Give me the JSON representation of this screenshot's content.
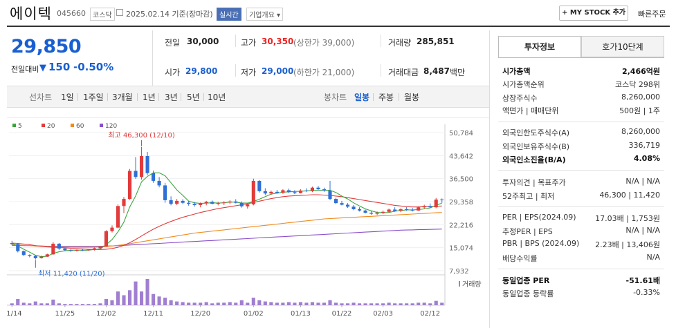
{
  "header": {
    "name": "에이텍",
    "code": "045660",
    "market": "코스닥",
    "date": "2025.02.14 기준(장마감)",
    "live": "실시간",
    "overview": "기업개요 ▾",
    "mystock": "+ MY STOCK 추가",
    "quick": "빠른주문"
  },
  "price": {
    "current": "29,850",
    "prev_label": "전일대비",
    "change": "150",
    "change_pct": "-0.50%"
  },
  "quote": {
    "prev_lbl": "전일",
    "prev_val": "30,000",
    "high_lbl": "고가",
    "high_val": "30,350",
    "high_sub": "(상한가 39,000)",
    "volume_lbl": "거래량",
    "volume_val": "285,851",
    "open_lbl": "시가",
    "open_val": "29,800",
    "low_lbl": "저가",
    "low_val": "29,000",
    "low_sub": "(하한가 21,000)",
    "amount_lbl": "거래대금",
    "amount_val": "8,487",
    "amount_unit": "백만"
  },
  "periods": {
    "line_label": "선차트",
    "line": [
      "1일",
      "1주일",
      "3개월",
      "1년",
      "3년",
      "5년",
      "10년"
    ],
    "candle_label": "봉차트",
    "candle": [
      "일봉",
      "주봉",
      "월봉"
    ],
    "selected": "일봉"
  },
  "chart_data": {
    "type": "candlestick",
    "legend": [
      "5",
      "20",
      "60",
      "120"
    ],
    "legend_colors": [
      "#3aa63a",
      "#e23b3b",
      "#f08a1c",
      "#8b4fc9"
    ],
    "y_ticks": [
      "50,784",
      "43,642",
      "36,500",
      "29,358",
      "22,216",
      "15,074",
      "7,932"
    ],
    "ylim": [
      7932,
      50784
    ],
    "x_ticks": [
      "11/14",
      "11/25",
      "12/02",
      "12/11",
      "12/20",
      "01/02",
      "01/13",
      "01/22",
      "02/03",
      "02/12"
    ],
    "max_label": "최고 46,300 (12/10)",
    "min_label": "최저 11,420 (11/20)",
    "volume_label": "거래량",
    "up_color": "#e23b3b",
    "down_color": "#2f6fd6",
    "volume_color": "#a07fd0",
    "candles": [
      [
        16500,
        17200,
        15800,
        16200
      ],
      [
        16200,
        16400,
        13600,
        14000
      ],
      [
        14000,
        14200,
        12500,
        12800
      ],
      [
        12800,
        13000,
        12100,
        12500
      ],
      [
        12500,
        12700,
        11420,
        11800
      ],
      [
        11800,
        12600,
        11700,
        12300
      ],
      [
        12300,
        13200,
        12200,
        13000
      ],
      [
        13000,
        16800,
        12900,
        16300
      ],
      [
        16300,
        16500,
        14400,
        14800
      ],
      [
        14800,
        15000,
        14000,
        14300
      ],
      [
        14300,
        14600,
        13800,
        14100
      ],
      [
        14100,
        14500,
        13900,
        14400
      ],
      [
        14400,
        14700,
        14000,
        14300
      ],
      [
        14300,
        14600,
        14100,
        14500
      ],
      [
        14500,
        15100,
        14200,
        14900
      ],
      [
        14900,
        15600,
        14700,
        15400
      ],
      [
        15400,
        20500,
        15300,
        20200
      ],
      [
        20200,
        22000,
        19800,
        21300
      ],
      [
        21300,
        28500,
        21100,
        28000
      ],
      [
        28000,
        30800,
        25800,
        30200
      ],
      [
        30200,
        39500,
        29900,
        38900
      ],
      [
        38900,
        43200,
        36400,
        37000
      ],
      [
        37000,
        46300,
        36200,
        43500
      ],
      [
        43500,
        44800,
        37600,
        38200
      ],
      [
        38200,
        39000,
        35200,
        35800
      ],
      [
        35800,
        37000,
        33800,
        34400
      ],
      [
        34400,
        35200,
        29000,
        29800
      ],
      [
        29800,
        31000,
        28200,
        28700
      ],
      [
        28700,
        30200,
        28300,
        29600
      ],
      [
        29600,
        30100,
        28600,
        29000
      ],
      [
        29000,
        29500,
        28100,
        28700
      ],
      [
        28700,
        29200,
        27800,
        28300
      ],
      [
        28300,
        29100,
        27600,
        28800
      ],
      [
        28800,
        29600,
        28200,
        29300
      ],
      [
        29300,
        29700,
        28500,
        28700
      ],
      [
        28700,
        29300,
        28200,
        28900
      ],
      [
        28900,
        29500,
        28300,
        29100
      ],
      [
        29100,
        29800,
        28600,
        29400
      ],
      [
        29400,
        30100,
        28800,
        29000
      ],
      [
        29000,
        29400,
        27500,
        27900
      ],
      [
        27900,
        28800,
        27200,
        28500
      ],
      [
        28500,
        36500,
        28200,
        35800
      ],
      [
        35800,
        36000,
        32200,
        32600
      ],
      [
        32600,
        33500,
        31400,
        31900
      ],
      [
        31900,
        32800,
        31500,
        32400
      ],
      [
        32400,
        33000,
        31800,
        32100
      ],
      [
        32100,
        33200,
        31800,
        32900
      ],
      [
        32900,
        33400,
        32000,
        32300
      ],
      [
        32300,
        32900,
        31700,
        32000
      ],
      [
        32000,
        33200,
        31900,
        32800
      ],
      [
        32800,
        33500,
        32300,
        32600
      ],
      [
        32600,
        34000,
        32300,
        33700
      ],
      [
        33700,
        34200,
        32900,
        33200
      ],
      [
        33200,
        33700,
        32400,
        32800
      ],
      [
        32800,
        35800,
        29800,
        30200
      ],
      [
        30200,
        30600,
        28600,
        28900
      ],
      [
        28900,
        29600,
        28200,
        28400
      ],
      [
        28400,
        28900,
        27400,
        27800
      ],
      [
        27800,
        28300,
        26700,
        27000
      ],
      [
        27000,
        27600,
        26300,
        26600
      ],
      [
        26600,
        26900,
        25700,
        25900
      ],
      [
        25900,
        26400,
        25300,
        25600
      ],
      [
        25600,
        26300,
        25200,
        25900
      ],
      [
        25900,
        26600,
        25500,
        26200
      ],
      [
        26200,
        27200,
        25900,
        26900
      ],
      [
        26900,
        27600,
        26200,
        26500
      ],
      [
        26500,
        27300,
        26100,
        27000
      ],
      [
        27000,
        27700,
        26500,
        26800
      ],
      [
        26800,
        27400,
        26300,
        26600
      ],
      [
        26600,
        27900,
        26500,
        27600
      ],
      [
        27600,
        28400,
        27200,
        28000
      ],
      [
        28000,
        28800,
        27400,
        27600
      ],
      [
        27600,
        30500,
        27300,
        30000
      ],
      [
        30000,
        30350,
        29000,
        29850
      ]
    ],
    "ma5": [
      16500,
      15600,
      14600,
      13700,
      12700,
      12300,
      12400,
      13300,
      13800,
      14100,
      14300,
      14300,
      14300,
      14300,
      14500,
      14700,
      16000,
      17600,
      20000,
      23000,
      27700,
      31100,
      35500,
      37200,
      38300,
      38300,
      37400,
      35200,
      33000,
      31300,
      29500,
      29000,
      28800,
      28900,
      29000,
      28900,
      29000,
      29200,
      29200,
      28900,
      28900,
      29400,
      30100,
      30900,
      31700,
      32000,
      32300,
      32400,
      32500,
      32600,
      32700,
      32800,
      32900,
      32900,
      32900,
      32200,
      31100,
      30200,
      29000,
      28000,
      27100,
      26500,
      26000,
      25900,
      26000,
      26400,
      26600,
      26800,
      26800,
      26900,
      27100,
      27400,
      28200,
      28900
    ],
    "ma20": [
      16500,
      16400,
      16200,
      16000,
      15700,
      15500,
      15300,
      15200,
      15100,
      15000,
      14900,
      14800,
      14700,
      14600,
      14500,
      14500,
      14600,
      14800,
      15200,
      15800,
      16600,
      17600,
      18700,
      19800,
      20800,
      21700,
      22500,
      23200,
      23900,
      24500,
      25000,
      25500,
      26000,
      26400,
      26800,
      27200,
      27500,
      27800,
      28100,
      28400,
      28700,
      29100,
      29500,
      29900,
      30300,
      30600,
      30900,
      31100,
      31200,
      31300,
      31400,
      31500,
      31500,
      31400,
      31300,
      31100,
      30900,
      30600,
      30300,
      30000,
      29700,
      29400,
      29100,
      28800,
      28500,
      28200,
      28000,
      27800,
      27700,
      27700,
      27800,
      27800,
      27900,
      28000
    ],
    "ma60": [
      16000,
      15900,
      15800,
      15700,
      15600,
      15500,
      15400,
      15300,
      15200,
      15200,
      15200,
      15200,
      15200,
      15200,
      15200,
      15300,
      15400,
      15600,
      15800,
      16000,
      16300,
      16600,
      16900,
      17200,
      17500,
      17800,
      18100,
      18400,
      18700,
      19000,
      19300,
      19600,
      19800,
      20000,
      20200,
      20400,
      20600,
      20800,
      21000,
      21200,
      21400,
      21600,
      21800,
      22000,
      22200,
      22400,
      22600,
      22800,
      23000,
      23200,
      23400,
      23600,
      23800,
      24000,
      24100,
      24200,
      24300,
      24400,
      24500,
      24600,
      24700,
      24800,
      24900,
      25000,
      25100,
      25200,
      25300,
      25400,
      25500,
      25600,
      25700,
      25800,
      25900,
      26000
    ],
    "ma120": [
      15800,
      15800,
      15700,
      15700,
      15600,
      15600,
      15500,
      15500,
      15500,
      15500,
      15500,
      15500,
      15500,
      15500,
      15500,
      15500,
      15600,
      15600,
      15700,
      15800,
      15900,
      16000,
      16100,
      16200,
      16300,
      16400,
      16500,
      16600,
      16700,
      16800,
      16900,
      17000,
      17100,
      17200,
      17300,
      17400,
      17500,
      17600,
      17700,
      17800,
      17900,
      18000,
      18100,
      18200,
      18300,
      18400,
      18500,
      18600,
      18700,
      18800,
      18900,
      19000,
      19100,
      19200,
      19300,
      19400,
      19500,
      19600,
      19700,
      19800,
      19900,
      20000,
      20100,
      20200,
      20300,
      20400,
      20500,
      20550,
      20600,
      20650,
      20700,
      20750,
      20800,
      20850
    ],
    "volume": [
      3,
      10,
      4,
      3,
      6,
      3,
      3,
      9,
      3,
      2,
      2,
      2,
      2,
      2,
      2,
      3,
      10,
      8,
      22,
      16,
      24,
      38,
      22,
      42,
      18,
      14,
      12,
      8,
      6,
      5,
      4,
      4,
      4,
      5,
      3,
      4,
      4,
      5,
      4,
      8,
      4,
      12,
      8,
      6,
      5,
      4,
      4,
      5,
      4,
      5,
      4,
      5,
      4,
      4,
      8,
      4,
      3,
      3,
      4,
      3,
      3,
      3,
      3,
      3,
      4,
      3,
      3,
      3,
      3,
      4,
      4,
      3,
      7,
      4
    ]
  },
  "invest_tabs": [
    "투자정보",
    "호가10단계"
  ],
  "invest": {
    "mcap": {
      "k": "시가총액",
      "v": "2,466억원"
    },
    "mcap_rank": {
      "k": "시가총액순위",
      "v": "코스닥 298위"
    },
    "shares": {
      "k": "상장주식수",
      "v": "8,260,000"
    },
    "par": {
      "k": "액면가 | 매매단위",
      "v": "500원 | 1주"
    },
    "foreign_limit": {
      "k": "외국인한도주식수(A)",
      "v": "8,260,000"
    },
    "foreign_hold": {
      "k": "외국인보유주식수(B)",
      "v": "336,719"
    },
    "foreign_ratio": {
      "k": "외국인소진율(B/A)",
      "v": "4.08%"
    },
    "opinion": {
      "k": "투자의견 | 목표주가",
      "v": "N/A | N/A"
    },
    "w52": {
      "k": "52주최고 | 최저",
      "v": "46,300 | 11,420"
    },
    "per": {
      "k": "PER | EPS(2024.09)",
      "v": "17.03배 | 1,753원"
    },
    "est_per": {
      "k": "추정PER | EPS",
      "v": "N/A | N/A"
    },
    "pbr": {
      "k": "PBR | BPS (2024.09)",
      "v": "2.23배 | 13,406원"
    },
    "div": {
      "k": "배당수익률",
      "v": "N/A"
    },
    "ind_per": {
      "k": "동일업종 PER",
      "v": "-51.61배"
    },
    "ind_rate": {
      "k": "동일업종 등락률",
      "v": "-0.33%"
    }
  }
}
